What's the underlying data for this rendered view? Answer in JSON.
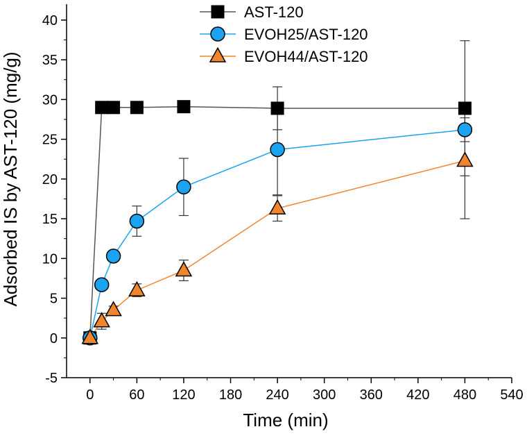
{
  "chart_data": {
    "type": "line",
    "title": "",
    "xlabel": "Time (min)",
    "ylabel": "Adsorbed IS by AST-120 (mg/g)",
    "xlim": [
      -30,
      540
    ],
    "ylim": [
      -5,
      42
    ],
    "xticks": [
      0,
      60,
      120,
      180,
      240,
      300,
      360,
      420,
      480,
      540
    ],
    "yticks": [
      -5,
      0,
      5,
      10,
      15,
      20,
      25,
      30,
      35,
      40
    ],
    "legend_position": "top-center",
    "grid": false,
    "series": [
      {
        "name": "AST-120",
        "marker": "square",
        "color": "#000000",
        "line_color": "#555555",
        "x": [
          0,
          15,
          30,
          60,
          120,
          240,
          480
        ],
        "y": [
          0,
          29.0,
          29.0,
          29.0,
          29.1,
          28.9,
          28.9
        ],
        "err": [
          0,
          0,
          0,
          0,
          0,
          2.7,
          8.5
        ]
      },
      {
        "name": "EVOH25/AST-120",
        "marker": "circle",
        "color": "#1aa3f0",
        "line_color": "#1aa3f0",
        "x": [
          0,
          15,
          30,
          60,
          120,
          240,
          480
        ],
        "y": [
          0,
          6.7,
          10.3,
          14.7,
          19.0,
          23.7,
          26.2
        ],
        "err": [
          0.3,
          0.6,
          0.4,
          1.9,
          3.6,
          5.7,
          1.5
        ]
      },
      {
        "name": "EVOH44/AST-120",
        "marker": "triangle",
        "color": "#f0852c",
        "line_color": "#f0852c",
        "x": [
          0,
          15,
          30,
          60,
          120,
          240,
          480
        ],
        "y": [
          0,
          2.1,
          3.5,
          6.0,
          8.5,
          16.3,
          22.3
        ],
        "err": [
          0.3,
          1.0,
          0.5,
          0.8,
          1.3,
          1.6,
          7.3
        ]
      }
    ]
  }
}
